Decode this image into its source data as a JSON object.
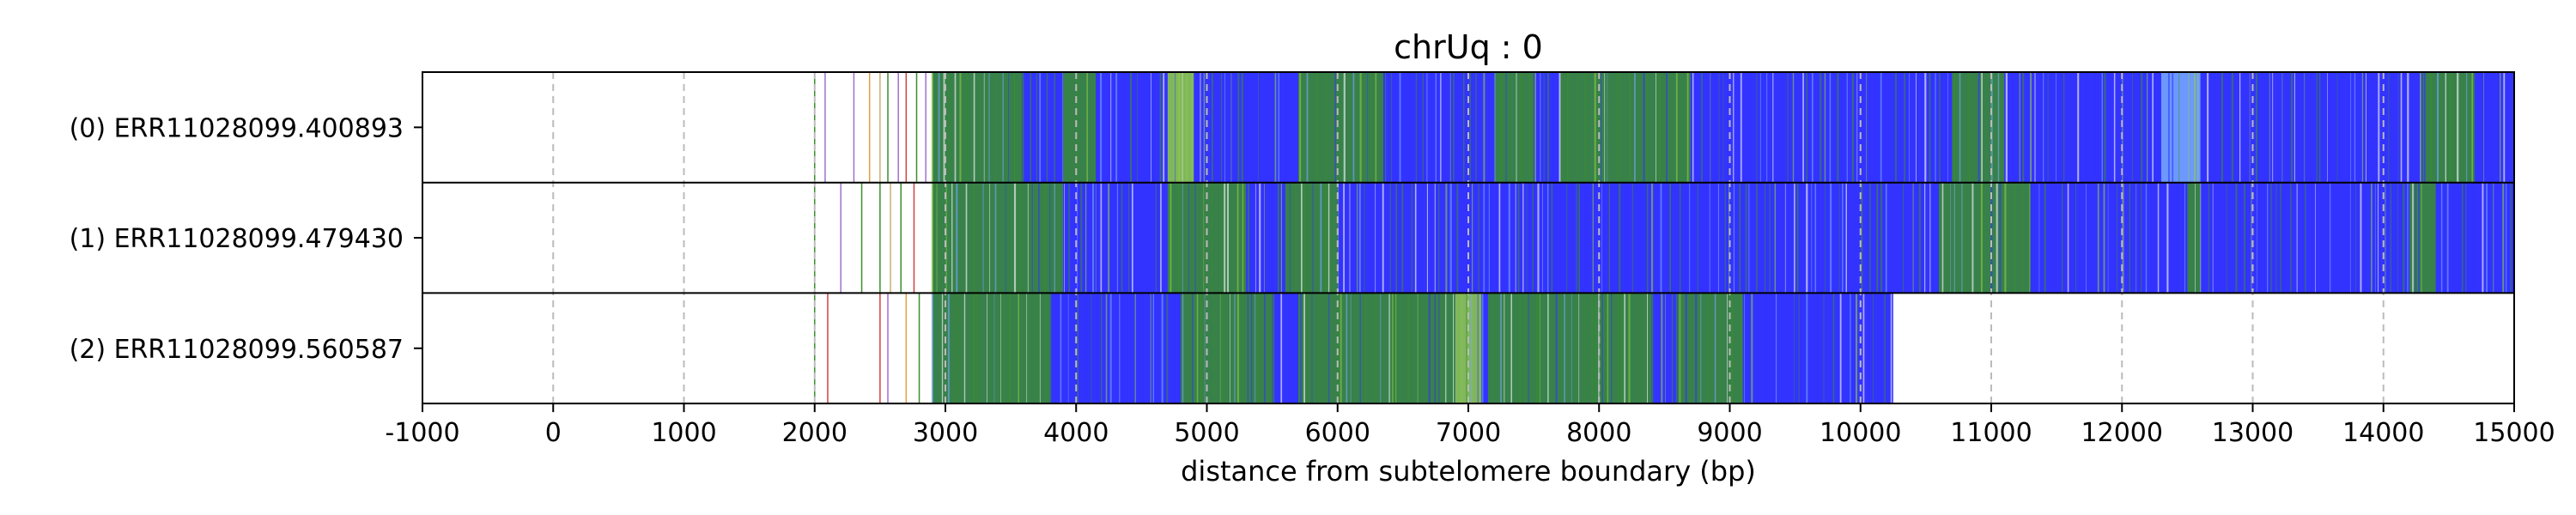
{
  "chart_data": {
    "type": "bar",
    "title": "chrUq : 0",
    "xlabel": "distance from subtelomere boundary (bp)",
    "ylabel": "",
    "xlim": [
      -1000,
      15000
    ],
    "x_ticks": [
      "-1000",
      "0",
      "1000",
      "2000",
      "3000",
      "4000",
      "5000",
      "6000",
      "7000",
      "8000",
      "9000",
      "10000",
      "11000",
      "12000",
      "13000",
      "14000",
      "15000"
    ],
    "x_tick_values": [
      -1000,
      0,
      1000,
      2000,
      3000,
      4000,
      5000,
      6000,
      7000,
      8000,
      9000,
      10000,
      11000,
      12000,
      13000,
      14000,
      15000
    ],
    "grid": "vertical dashed",
    "legend": "none",
    "colors": {
      "blue": "#3333ff",
      "green": "#3a8f2a",
      "lightgreen": "#8fcf3f",
      "lightblue": "#77aaff",
      "purple": "#a070d0",
      "red": "#d04040",
      "orange": "#e0a040",
      "tan": "#c8b070",
      "grid": "#bbbbbb"
    },
    "series": [
      {
        "name": "(0) ERR11028099.400893",
        "read_start": 2900,
        "read_end": 15000,
        "base_color": "blue",
        "pre_marks": [
          {
            "x": 2000,
            "color": "green"
          },
          {
            "x": 2080,
            "color": "purple"
          },
          {
            "x": 2300,
            "color": "purple"
          },
          {
            "x": 2420,
            "color": "orange"
          },
          {
            "x": 2500,
            "color": "tan"
          },
          {
            "x": 2560,
            "color": "green"
          },
          {
            "x": 2640,
            "color": "purple"
          },
          {
            "x": 2700,
            "color": "red"
          },
          {
            "x": 2780,
            "color": "green"
          },
          {
            "x": 2850,
            "color": "purple"
          }
        ],
        "segments": [
          {
            "start": 2900,
            "end": 3600,
            "color": "green"
          },
          {
            "start": 3900,
            "end": 4150,
            "color": "green"
          },
          {
            "start": 4700,
            "end": 4900,
            "color": "lightgreen"
          },
          {
            "start": 5700,
            "end": 6350,
            "color": "green"
          },
          {
            "start": 7200,
            "end": 7500,
            "color": "green"
          },
          {
            "start": 7700,
            "end": 8700,
            "color": "green"
          },
          {
            "start": 10700,
            "end": 11100,
            "color": "green"
          },
          {
            "start": 12300,
            "end": 12600,
            "color": "lightblue"
          },
          {
            "start": 14300,
            "end": 14700,
            "color": "green"
          }
        ]
      },
      {
        "name": "(1) ERR11028099.479430",
        "read_start": 2900,
        "read_end": 15000,
        "base_color": "blue",
        "pre_marks": [
          {
            "x": 2000,
            "color": "green"
          },
          {
            "x": 2200,
            "color": "purple"
          },
          {
            "x": 2360,
            "color": "green"
          },
          {
            "x": 2500,
            "color": "green"
          },
          {
            "x": 2580,
            "color": "tan"
          },
          {
            "x": 2660,
            "color": "green"
          },
          {
            "x": 2760,
            "color": "red"
          }
        ],
        "segments": [
          {
            "start": 2900,
            "end": 3900,
            "color": "green"
          },
          {
            "start": 4700,
            "end": 5300,
            "color": "green"
          },
          {
            "start": 5600,
            "end": 6000,
            "color": "green"
          },
          {
            "start": 10600,
            "end": 11300,
            "color": "green"
          },
          {
            "start": 12500,
            "end": 12600,
            "color": "green"
          },
          {
            "start": 14200,
            "end": 14400,
            "color": "green"
          }
        ]
      },
      {
        "name": "(2) ERR11028099.560587",
        "read_start": 2900,
        "read_end": 10250,
        "base_color": "blue",
        "pre_marks": [
          {
            "x": 2000,
            "color": "green"
          },
          {
            "x": 2100,
            "color": "red"
          },
          {
            "x": 2500,
            "color": "red"
          },
          {
            "x": 2560,
            "color": "purple"
          },
          {
            "x": 2700,
            "color": "orange"
          },
          {
            "x": 2800,
            "color": "green"
          }
        ],
        "segments": [
          {
            "start": 2900,
            "end": 3800,
            "color": "green"
          },
          {
            "start": 4800,
            "end": 5500,
            "color": "green"
          },
          {
            "start": 5700,
            "end": 6900,
            "color": "green"
          },
          {
            "start": 6900,
            "end": 7100,
            "color": "lightgreen"
          },
          {
            "start": 7150,
            "end": 8400,
            "color": "green"
          },
          {
            "start": 8600,
            "end": 9100,
            "color": "green"
          }
        ]
      }
    ]
  }
}
